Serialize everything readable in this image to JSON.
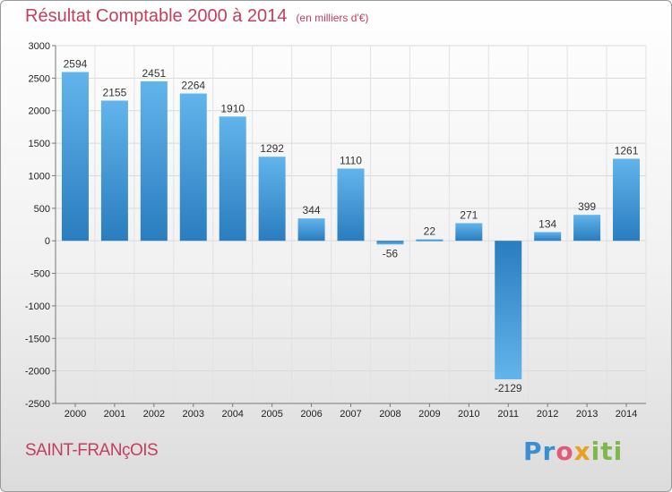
{
  "header": {
    "title": "Résultat Comptable 2000 à 2014",
    "unit": "(en milliers d'€)"
  },
  "footer": {
    "town": "SAINT-FRANçOIS",
    "logo_parts": [
      "Pr",
      "o",
      "x",
      "iti"
    ]
  },
  "colors": {
    "title": "#c23f5e",
    "bar_top": "#5eb1ea",
    "bar_bottom": "#2a7dbe"
  },
  "chart_data": {
    "type": "bar",
    "title": "Résultat Comptable 2000 à 2014",
    "subtitle": "(en milliers d'€)",
    "categories": [
      "2000",
      "2001",
      "2002",
      "2003",
      "2004",
      "2005",
      "2006",
      "2007",
      "2008",
      "2009",
      "2010",
      "2011",
      "2012",
      "2013",
      "2014"
    ],
    "values": [
      2594,
      2155,
      2451,
      2264,
      1910,
      1292,
      344,
      1110,
      -56,
      22,
      271,
      -2129,
      134,
      399,
      1261
    ],
    "ylim": [
      -2500,
      3000
    ],
    "yticks": [
      3000,
      2500,
      2000,
      1500,
      1000,
      500,
      0,
      -500,
      -1000,
      -1500,
      -2000,
      -2500
    ],
    "ytick_labels": [
      "3000",
      "2500",
      "2000",
      "1500",
      "1000",
      "500",
      "0",
      "-500",
      "-1000",
      "-1500",
      "-2000",
      "-2500"
    ],
    "grid": true,
    "xlabel": "",
    "ylabel": ""
  }
}
